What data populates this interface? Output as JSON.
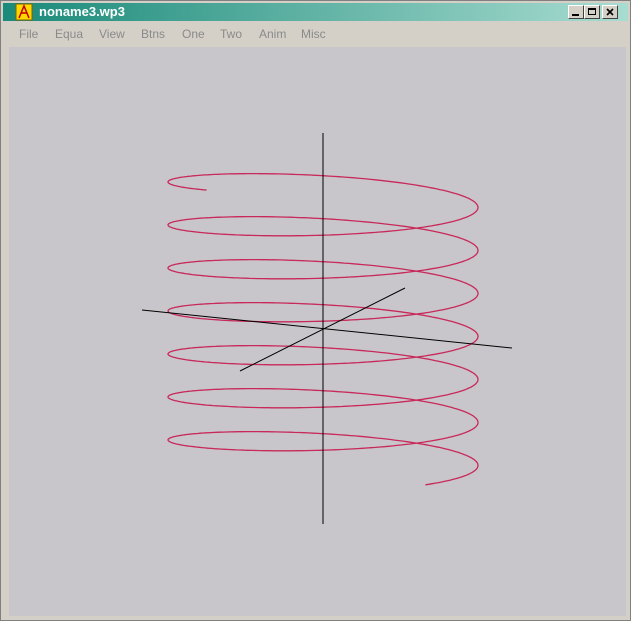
{
  "window": {
    "title": "noname3.wp3"
  },
  "menu": [
    "File",
    "Equa",
    "View",
    "Btns",
    "One",
    "Two",
    "Anim",
    "Misc"
  ]
}
